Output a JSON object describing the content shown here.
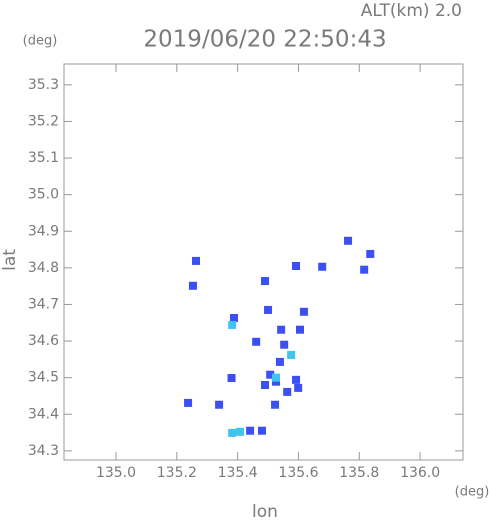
{
  "chart_data": {
    "type": "scatter",
    "title": "2019/06/20 22:50:43",
    "subtitle": "ALT(km) 2.0",
    "y_unit": "(deg)",
    "x_unit": "(deg)",
    "x_label": "lon",
    "y_label": "lat",
    "xlim": [
      134.829,
      136.141
    ],
    "ylim": [
      34.275,
      35.357
    ],
    "xticks": [
      {
        "value": 135,
        "label": "135.0"
      },
      135.2,
      135.4,
      135.6,
      135.8,
      {
        "value": 136,
        "label": "136.0"
      }
    ],
    "yticks": [
      34.3,
      34.4,
      34.5,
      34.6,
      34.7,
      34.8,
      34.9,
      {
        "value": 35,
        "label": "35.0"
      },
      35.1,
      35.2,
      35.3
    ],
    "series": [
      {
        "color": "#3b4ff2",
        "x": [
          135.263,
          135.253,
          135.49,
          135.592,
          135.678,
          135.763,
          135.816,
          135.836,
          135.618,
          135.5,
          135.388,
          135.543,
          135.605,
          135.553,
          135.539,
          135.507,
          135.592,
          135.526,
          135.49,
          135.599,
          135.563,
          135.461,
          135.38,
          135.523,
          135.237,
          135.339,
          135.441,
          135.48
        ],
        "values": [
          34.819,
          34.751,
          34.764,
          34.805,
          34.803,
          34.874,
          34.795,
          34.838,
          34.68,
          34.685,
          34.663,
          34.631,
          34.631,
          34.59,
          34.543,
          34.508,
          34.494,
          34.489,
          34.48,
          34.472,
          34.461,
          34.598,
          34.499,
          34.426,
          34.431,
          34.426,
          34.355,
          34.355
        ]
      },
      {
        "color": "#3fc4ee",
        "x": [
          135.382,
          135.408,
          135.576,
          135.526,
          135.382
        ],
        "values": [
          34.349,
          34.352,
          34.562,
          34.5,
          34.644
        ]
      }
    ]
  }
}
